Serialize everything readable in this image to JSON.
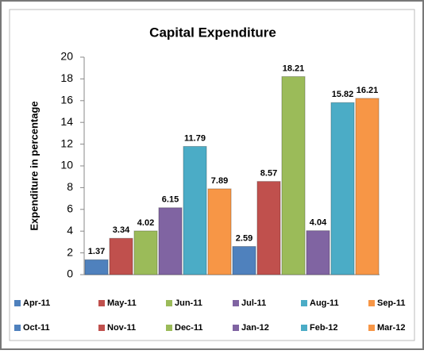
{
  "chart_data": {
    "type": "bar",
    "title": "Capital Expenditure",
    "y_label": "Expenditure in percentage",
    "categories": [
      "Apr-11",
      "May-11",
      "Jun-11",
      "Jul-11",
      "Aug-11",
      "Sep-11",
      "Oct-11",
      "Nov-11",
      "Dec-11",
      "Jan-12",
      "Feb-12",
      "Mar-12"
    ],
    "values": [
      1.37,
      3.34,
      4.02,
      6.15,
      11.79,
      7.89,
      2.59,
      8.57,
      18.21,
      4.04,
      15.82,
      16.21
    ],
    "colors": [
      "#4f81bd",
      "#c0504d",
      "#9bbb59",
      "#8064a2",
      "#4bacc6",
      "#f79646",
      "#4f81bd",
      "#c0504d",
      "#9bbb59",
      "#8064a2",
      "#4bacc6",
      "#f79646"
    ],
    "ylim": [
      0,
      20
    ],
    "yticks": [
      0,
      2,
      4,
      6,
      8,
      10,
      12,
      14,
      16,
      18,
      20
    ],
    "legend": "bottom"
  }
}
